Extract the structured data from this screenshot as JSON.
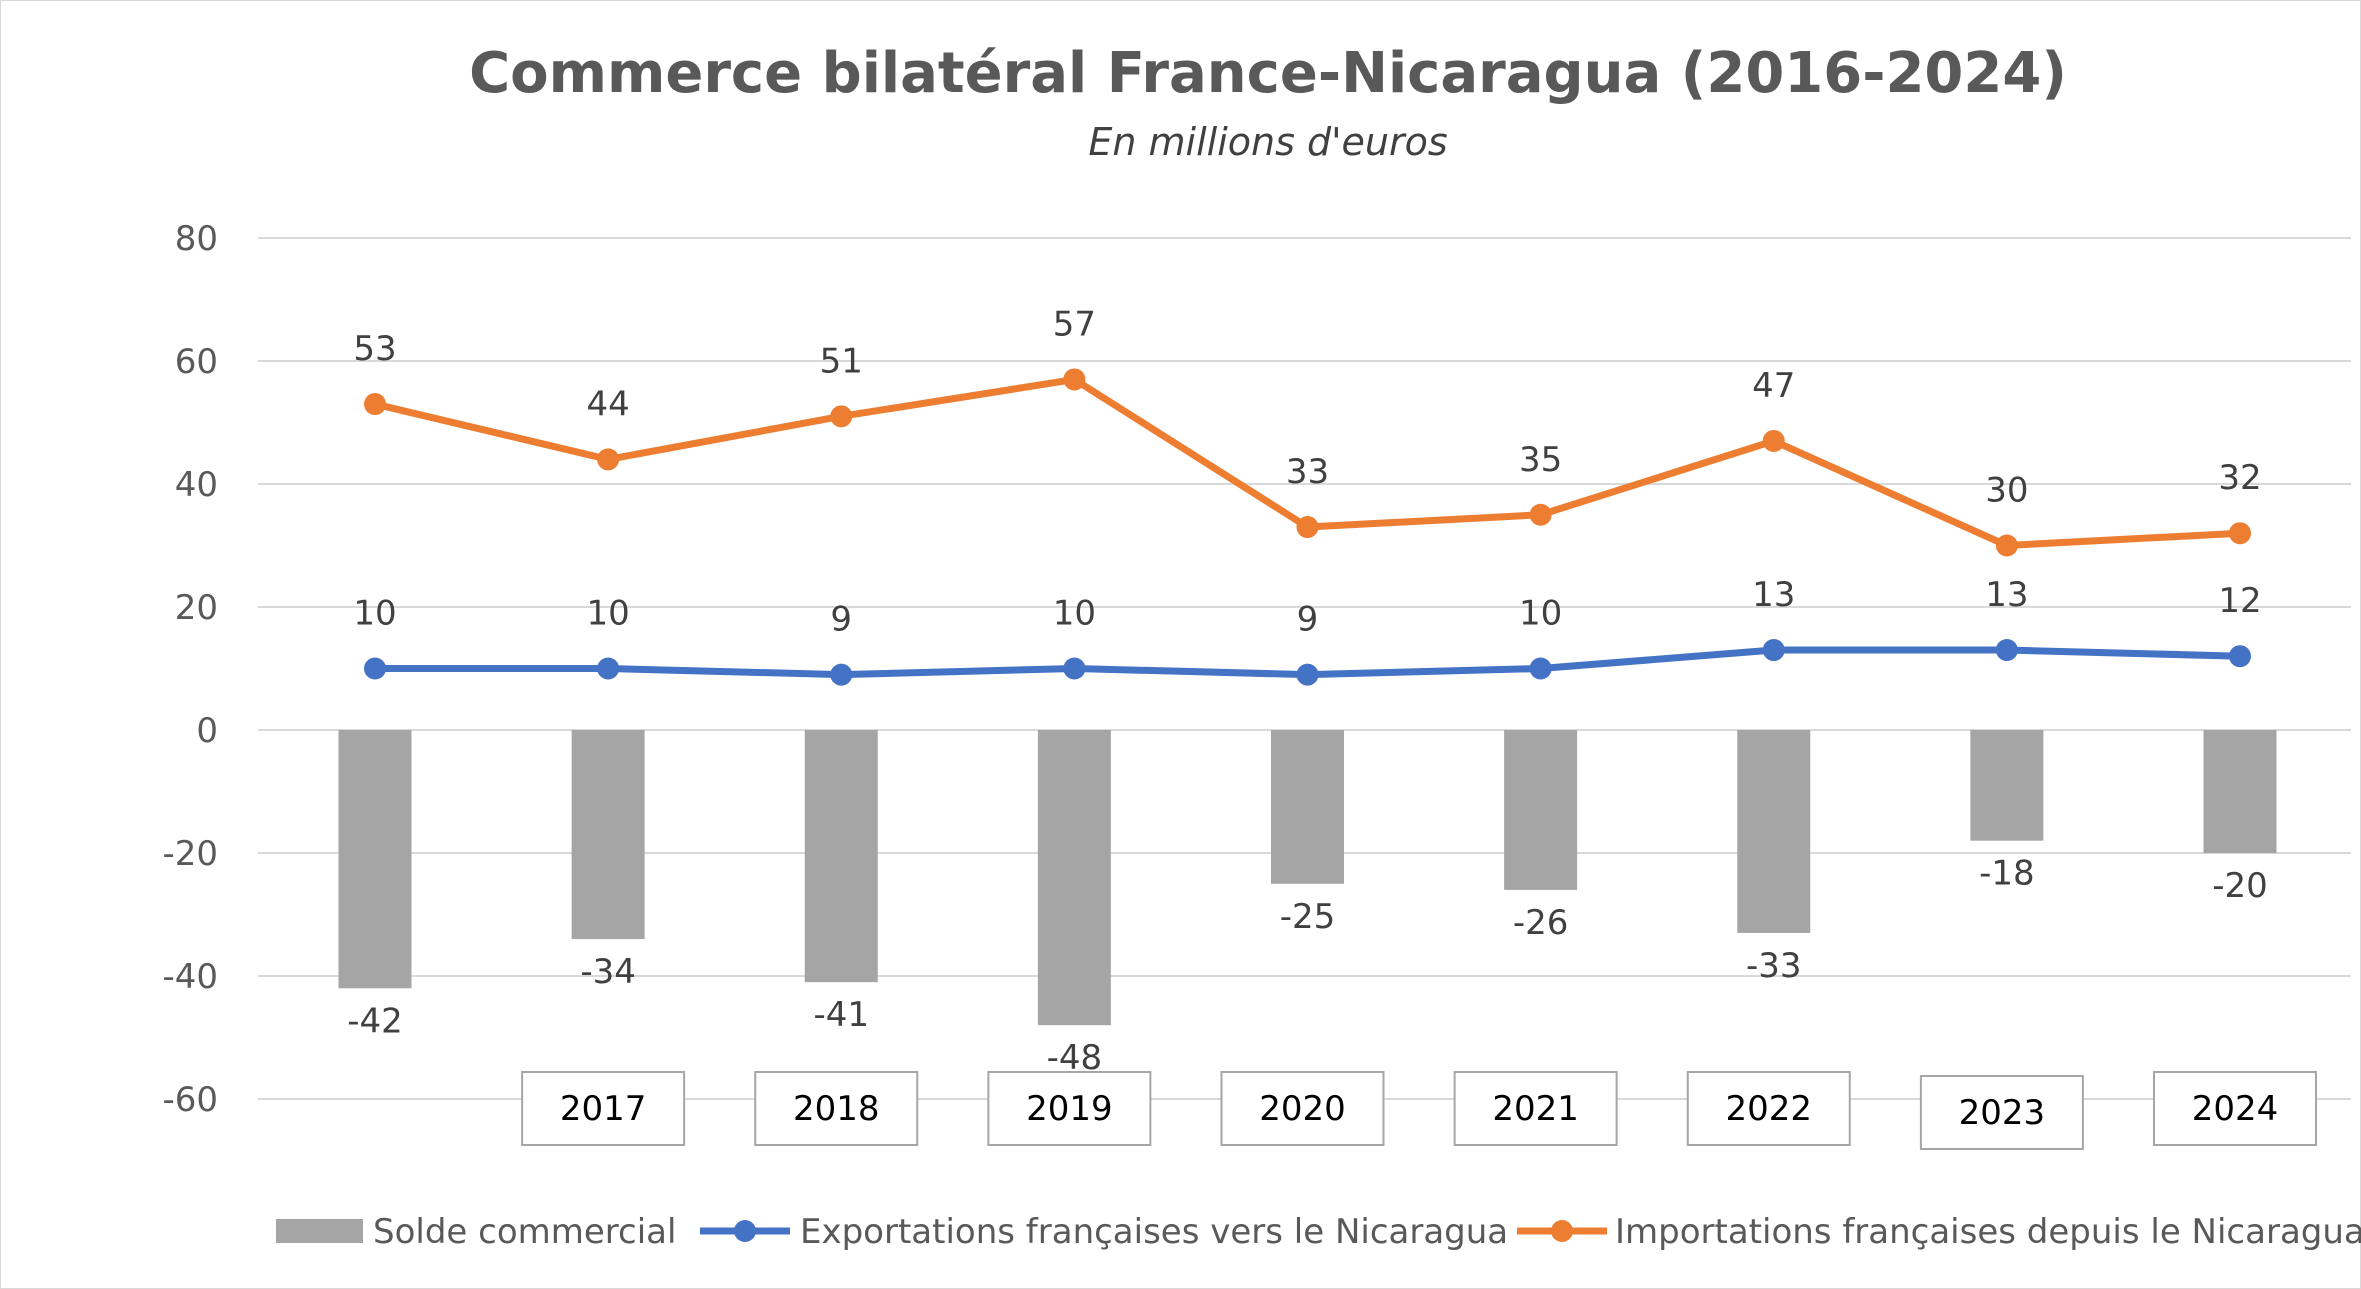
{
  "chart_data": {
    "type": "bar",
    "title": "Commerce bilatéral France-Nicaragua (2016-2024)",
    "subtitle": "En millions d'euros",
    "categories": [
      "",
      "2017",
      "2018",
      "2019",
      "2020",
      "2021",
      "2022",
      "2023",
      "2024"
    ],
    "ylim": [
      -60,
      80
    ],
    "yticks": [
      80,
      60,
      40,
      20,
      0,
      -20,
      -40,
      -60
    ],
    "grid": true,
    "legend_position": "bottom",
    "series": [
      {
        "name": "Solde commercial",
        "type": "bar",
        "color": "#a5a5a5",
        "values": [
          -42,
          -34,
          -41,
          -48,
          -25,
          -26,
          -33,
          -18,
          -20
        ]
      },
      {
        "name": "Exportations françaises vers le Nicaragua",
        "type": "line",
        "color": "#4472c4",
        "values": [
          10,
          10,
          9,
          10,
          9,
          10,
          13,
          13,
          12
        ]
      },
      {
        "name": "Importations françaises depuis le Nicaragua",
        "type": "line",
        "color": "#ed7d31",
        "values": [
          53,
          44,
          51,
          57,
          33,
          35,
          47,
          30,
          32
        ]
      }
    ]
  }
}
